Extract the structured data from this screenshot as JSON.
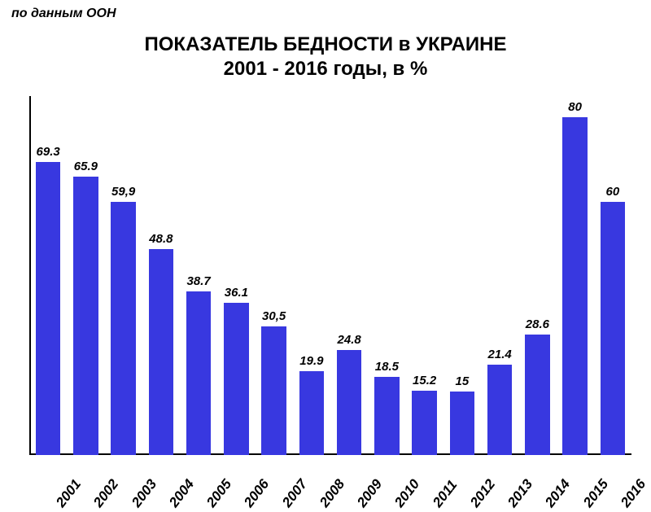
{
  "source_note": "по данным ООН",
  "title_line_1": "ПОКАЗАТЕЛЬ БЕДНОСТИ в УКРАИНЕ",
  "title_line_2": "2001 - 2016 годы, в %",
  "chart": {
    "type": "bar",
    "categories": [
      "2001",
      "2002",
      "2003",
      "2004",
      "2005",
      "2006",
      "2007",
      "2008",
      "2009",
      "2010",
      "2011",
      "2012",
      "2013",
      "2014",
      "2015",
      "2016"
    ],
    "values": [
      69.3,
      65.9,
      59.9,
      48.8,
      38.7,
      36.1,
      30.5,
      19.9,
      24.8,
      18.5,
      15.2,
      15,
      21.4,
      28.6,
      80,
      60
    ],
    "value_labels": [
      "69.3",
      "65.9",
      "59,9",
      "48.8",
      "38.7",
      "36.1",
      "30,5",
      "19.9",
      "24.8",
      "18.5",
      "15.2",
      "15",
      "21.4",
      "28.6",
      "80",
      "60"
    ],
    "bar_color": "#3838e0",
    "axis_color": "#000000",
    "background_color": "#ffffff",
    "ylim": [
      0,
      85
    ],
    "bar_width_ratio": 0.66,
    "value_label_fontsize": 15,
    "value_label_style": "italic bold",
    "x_label_fontsize": 17,
    "x_label_style": "italic bold",
    "x_label_rotation_deg": -52,
    "title_fontsize": 24,
    "title_weight": "bold",
    "source_fontsize": 16,
    "source_style": "italic bold"
  }
}
